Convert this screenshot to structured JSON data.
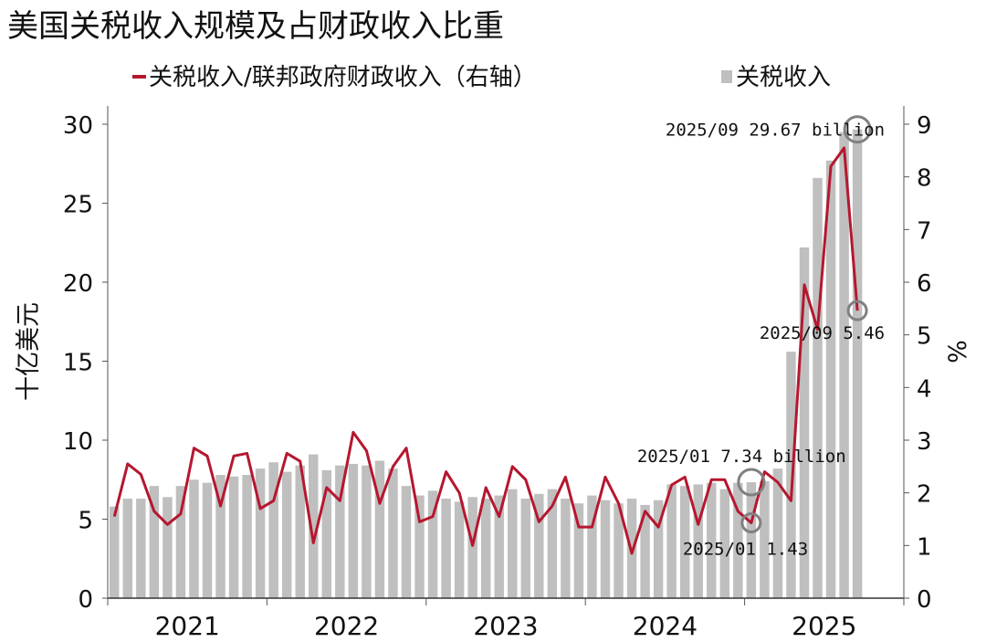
{
  "chart_data": {
    "type": "bar+line",
    "title": "美国关税收入规模及占财政收入比重",
    "legend": [
      {
        "label": "关税收入/联邦政府财政收入（右轴）",
        "kind": "line",
        "color": "#B5172F"
      },
      {
        "label": "关税收入",
        "kind": "bar",
        "color": "#BFBFBF"
      }
    ],
    "legend_position": "top",
    "ylabel_left": "十亿美元",
    "ylabel_right": "%",
    "y_left": {
      "min": 0,
      "max": 30,
      "ticks": [
        "0",
        "5",
        "10",
        "15",
        "20",
        "25",
        "30"
      ]
    },
    "y_right": {
      "min": 0,
      "max": 9,
      "ticks": [
        "0",
        "1",
        "2",
        "3",
        "4",
        "5",
        "6",
        "7",
        "8",
        "9"
      ]
    },
    "x_year_labels": [
      "2021",
      "2022",
      "2023",
      "2024",
      "2025"
    ],
    "months": [
      "2021/01",
      "2021/02",
      "2021/03",
      "2021/04",
      "2021/05",
      "2021/06",
      "2021/07",
      "2021/08",
      "2021/09",
      "2021/10",
      "2021/11",
      "2021/12",
      "2022/01",
      "2022/02",
      "2022/03",
      "2022/04",
      "2022/05",
      "2022/06",
      "2022/07",
      "2022/08",
      "2022/09",
      "2022/10",
      "2022/11",
      "2022/12",
      "2023/01",
      "2023/02",
      "2023/03",
      "2023/04",
      "2023/05",
      "2023/06",
      "2023/07",
      "2023/08",
      "2023/09",
      "2023/10",
      "2023/11",
      "2023/12",
      "2024/01",
      "2024/02",
      "2024/03",
      "2024/04",
      "2024/05",
      "2024/06",
      "2024/07",
      "2024/08",
      "2024/09",
      "2024/10",
      "2024/11",
      "2024/12",
      "2025/01",
      "2025/02",
      "2025/03",
      "2025/04",
      "2025/05",
      "2025/06",
      "2025/07",
      "2025/08",
      "2025/09"
    ],
    "series": [
      {
        "name": "关税收入",
        "axis": "left",
        "values": [
          5.8,
          6.3,
          6.3,
          7.1,
          6.4,
          7.1,
          7.5,
          7.3,
          7.8,
          7.7,
          7.8,
          8.2,
          8.6,
          8.0,
          8.4,
          9.1,
          8.1,
          8.4,
          8.5,
          8.4,
          8.7,
          8.2,
          7.1,
          6.5,
          6.8,
          6.3,
          6.1,
          6.4,
          6.3,
          6.5,
          6.9,
          6.3,
          6.6,
          6.9,
          6.3,
          6.0,
          6.5,
          6.2,
          6.0,
          6.3,
          5.9,
          6.2,
          7.2,
          7.1,
          7.2,
          7.3,
          6.9,
          7.3,
          7.34,
          7.4,
          8.2,
          15.6,
          22.2,
          26.6,
          27.7,
          29.5,
          29.67
        ]
      },
      {
        "name": "关税收入/联邦政府财政收入（右轴）",
        "axis": "right",
        "values": [
          1.55,
          2.55,
          2.35,
          1.65,
          1.4,
          1.6,
          2.85,
          2.7,
          1.75,
          2.7,
          2.75,
          1.7,
          1.85,
          2.75,
          2.6,
          1.05,
          2.1,
          1.85,
          3.15,
          2.8,
          1.8,
          2.5,
          2.85,
          1.45,
          1.55,
          2.4,
          2.0,
          1.0,
          2.1,
          1.55,
          2.5,
          2.25,
          1.45,
          1.75,
          2.3,
          1.35,
          1.35,
          2.3,
          1.8,
          0.85,
          1.65,
          1.35,
          2.15,
          2.3,
          1.4,
          2.25,
          2.25,
          1.65,
          1.43,
          2.4,
          2.2,
          1.85,
          5.95,
          5.1,
          8.2,
          8.55,
          5.46
        ]
      }
    ],
    "annotations": [
      {
        "text": "2025/09 29.67 billion",
        "series": "关税收入",
        "month": "2025/09"
      },
      {
        "text": "2025/09 5.46",
        "series": "关税收入/联邦政府财政收入（右轴）",
        "month": "2025/09"
      },
      {
        "text": "2025/01 7.34 billion",
        "series": "关税收入",
        "month": "2025/01"
      },
      {
        "text": "2025/01 1.43",
        "series": "关税收入/联邦政府财政收入（右轴）",
        "month": "2025/01"
      }
    ],
    "grid": false
  }
}
